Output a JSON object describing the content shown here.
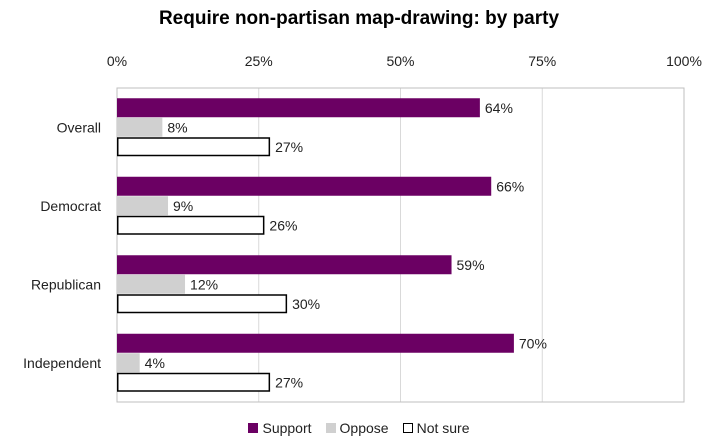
{
  "chart_data": {
    "type": "bar",
    "orientation": "horizontal",
    "title": "Require non-partisan map-drawing: by party",
    "categories": [
      "Overall",
      "Democrat",
      "Republican",
      "Independent"
    ],
    "series": [
      {
        "name": "Support",
        "values": [
          64,
          66,
          59,
          70
        ],
        "color": "#6b0063"
      },
      {
        "name": "Oppose",
        "values": [
          8,
          9,
          12,
          4
        ],
        "color": "#d0d0d0"
      },
      {
        "name": "Not sure",
        "values": [
          27,
          26,
          30,
          27
        ],
        "color": "#ffffff"
      }
    ],
    "value_suffix": "%",
    "xlim": [
      0,
      100
    ],
    "x_ticks": [
      "0%",
      "25%",
      "50%",
      "75%",
      "100%"
    ],
    "x_tick_values": [
      0,
      25,
      50,
      75,
      100
    ],
    "xlabel": "",
    "ylabel": "",
    "grid": true,
    "legend_position": "bottom"
  }
}
